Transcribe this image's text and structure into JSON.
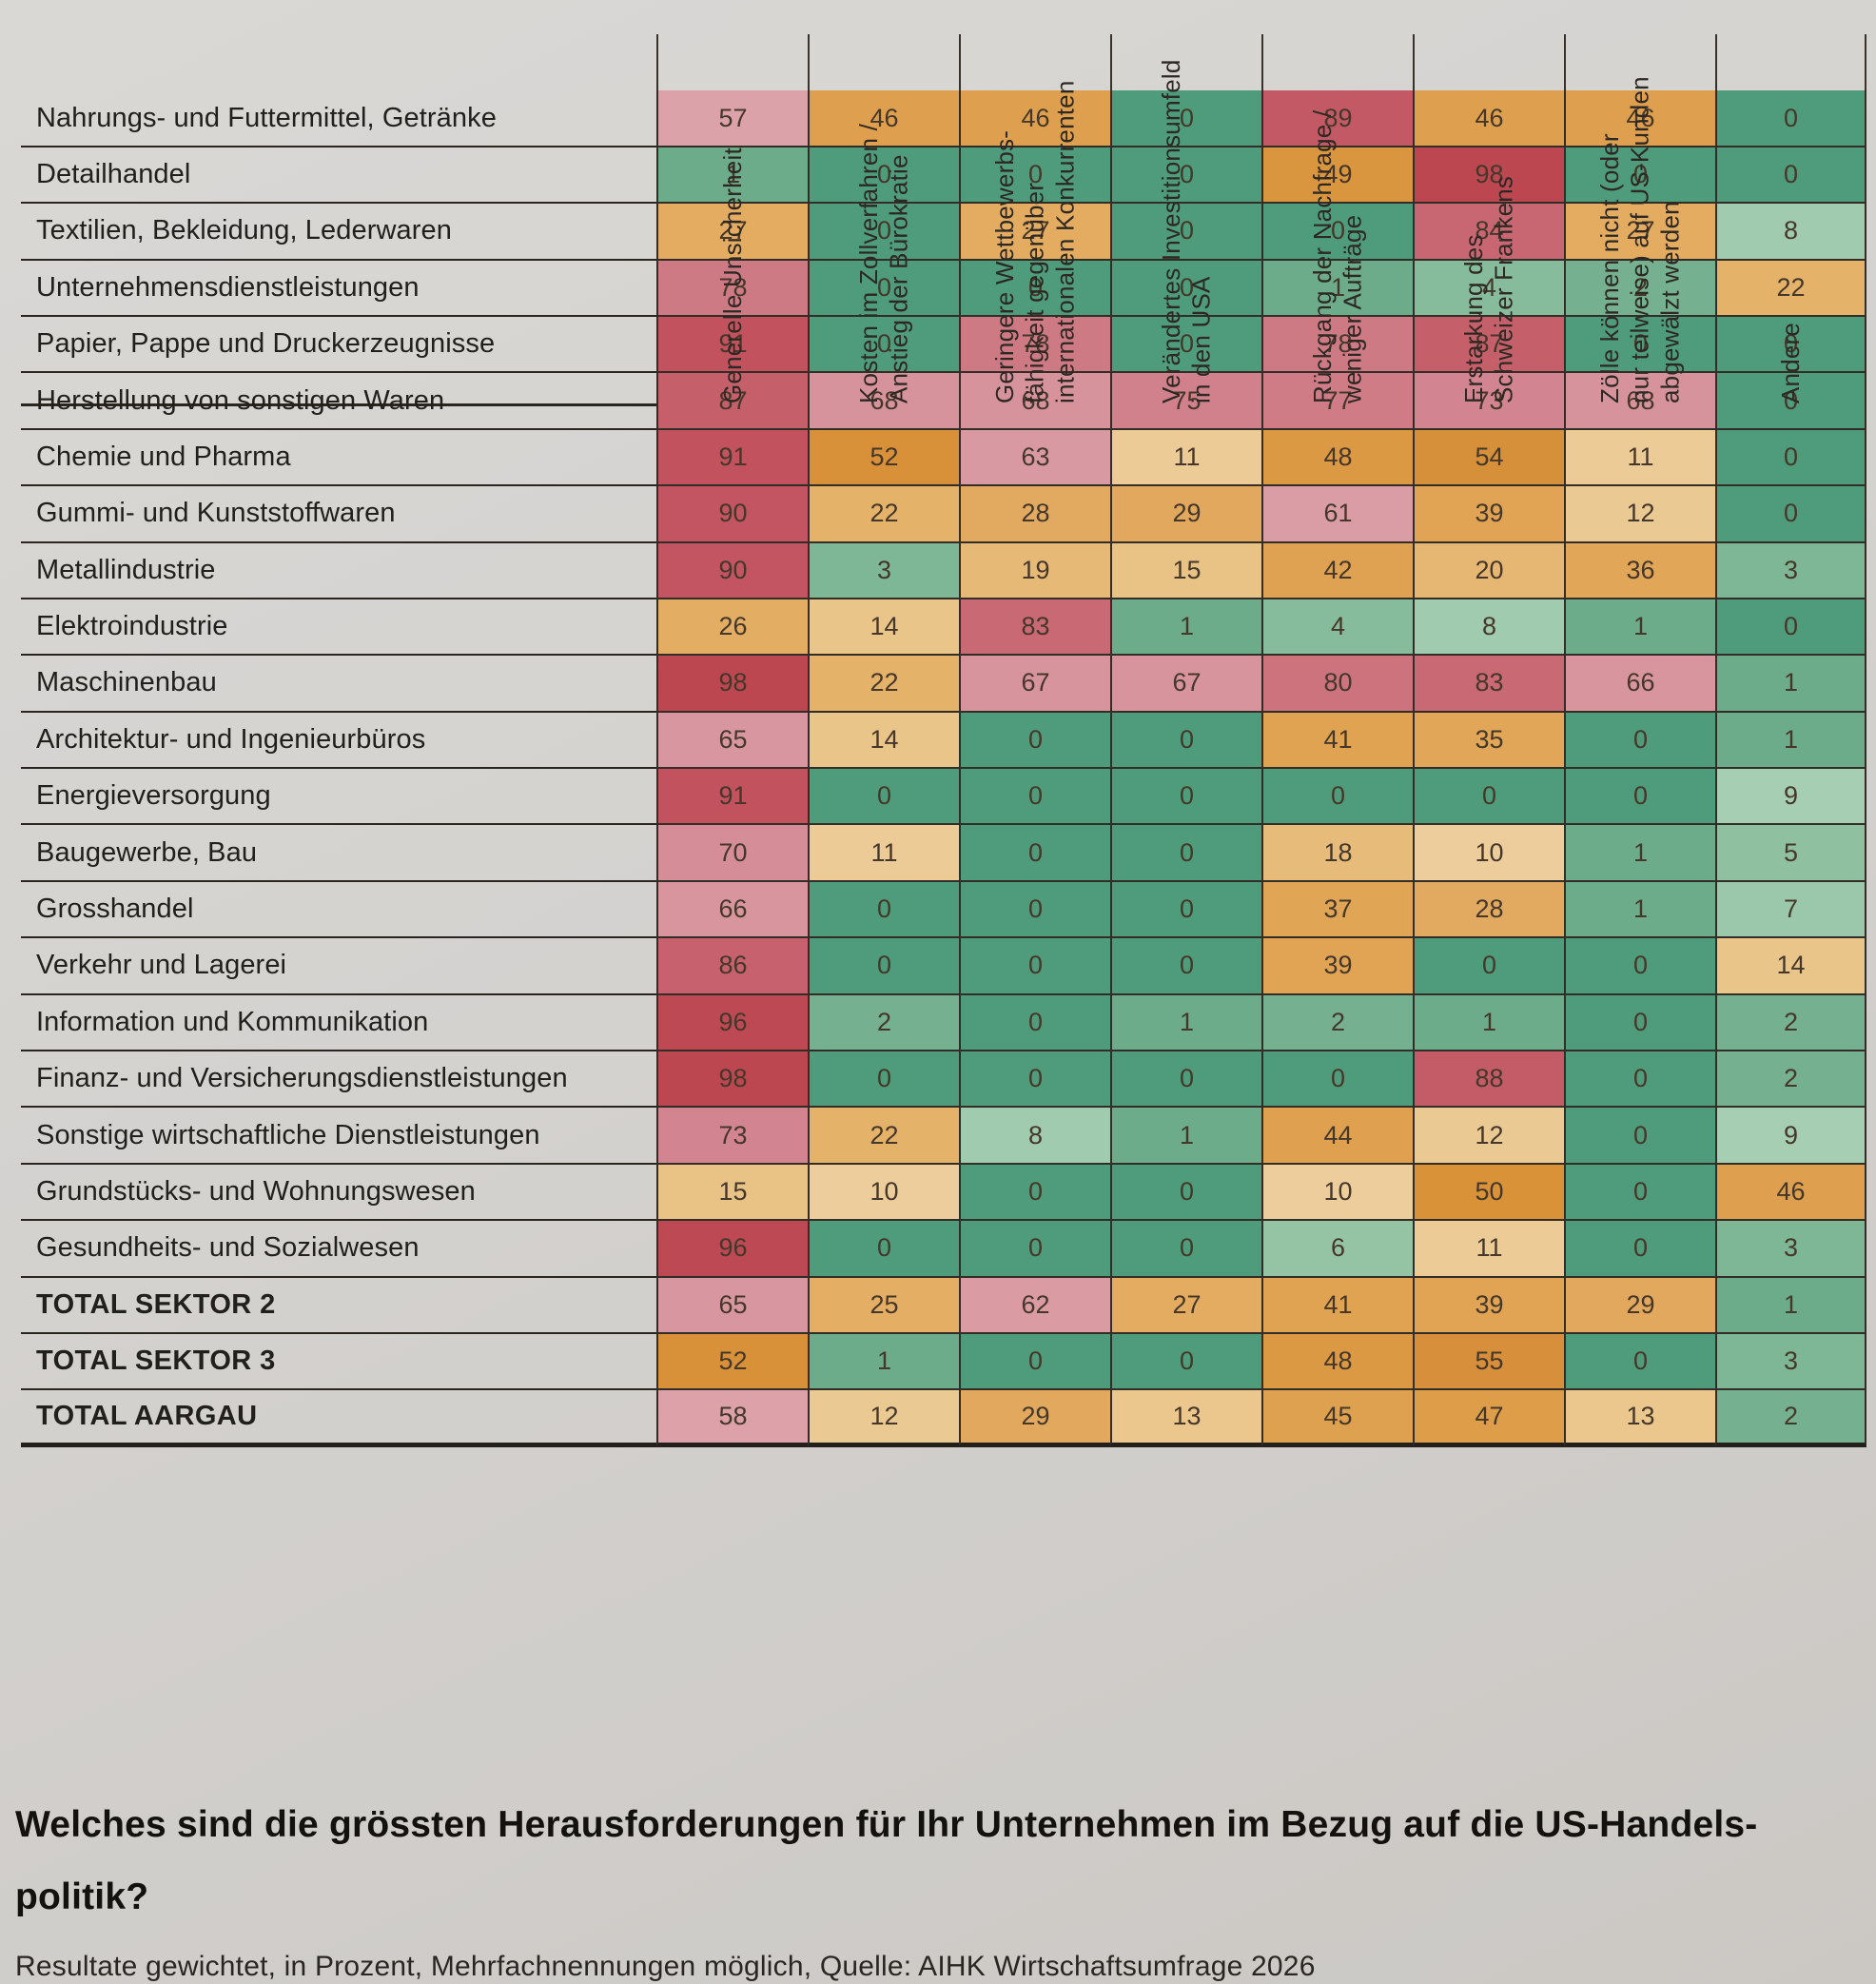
{
  "chart_data": {
    "type": "heatmap",
    "title": "Welches sind die grössten Herausforderungen für Ihr Unternehmen im Bezug auf die US-Handelspolitik?",
    "note": "Resultate gewichtet, in Prozent, Mehrfachnennungen möglich, Quelle: AIHK Wirtschaftsumfrage 2026",
    "unit": "percent",
    "value_range": [
      0,
      100
    ],
    "columns": [
      [
        "Generelle Unsicherheit"
      ],
      [
        "Kosten im Zollverfahren /",
        "Anstieg der Bürokratie"
      ],
      [
        "Geringere Wettbewerbs-",
        "fähigkeit gegenüber",
        "internationalen Konkurrenten"
      ],
      [
        "Verändertes Investitionsumfeld",
        "in den USA"
      ],
      [
        "Rückgang der Nachfrage /",
        "weniger Aufträge"
      ],
      [
        "Erstarkung des",
        "Schweizer Frankens"
      ],
      [
        "Zölle können nicht (oder",
        "nur teilweise) auf US-Kunden",
        "abgewälzt werden"
      ],
      [
        "Andere"
      ]
    ],
    "rows": [
      {
        "label": "Nahrungs- und Futtermittel, Getränke",
        "bold": false,
        "values": [
          57,
          46,
          46,
          0,
          89,
          46,
          46,
          0
        ]
      },
      {
        "label": "Detailhandel",
        "bold": false,
        "values": [
          1,
          0,
          0,
          0,
          49,
          98,
          0,
          0
        ]
      },
      {
        "label": "Textilien, Bekleidung, Lederwaren",
        "bold": false,
        "values": [
          27,
          0,
          27,
          0,
          0,
          84,
          27,
          8
        ]
      },
      {
        "label": "Unternehmensdienstleistungen",
        "bold": false,
        "values": [
          78,
          0,
          0,
          0,
          1,
          4,
          2,
          22
        ]
      },
      {
        "label": "Papier, Pappe und Druckerzeugnisse",
        "bold": false,
        "values": [
          91,
          0,
          78,
          0,
          78,
          87,
          0,
          0
        ]
      },
      {
        "label": "Herstellung von sonstigen Waren",
        "bold": false,
        "values": [
          87,
          68,
          68,
          75,
          77,
          73,
          68,
          0
        ]
      },
      {
        "label": "Chemie und Pharma",
        "bold": false,
        "values": [
          91,
          52,
          63,
          11,
          48,
          54,
          11,
          0
        ]
      },
      {
        "label": "Gummi- und Kunststoffwaren",
        "bold": false,
        "values": [
          90,
          22,
          28,
          29,
          61,
          39,
          12,
          0
        ]
      },
      {
        "label": "Metallindustrie",
        "bold": false,
        "values": [
          90,
          3,
          19,
          15,
          42,
          20,
          36,
          3
        ]
      },
      {
        "label": "Elektroindustrie",
        "bold": false,
        "values": [
          26,
          14,
          83,
          1,
          4,
          8,
          1,
          0
        ]
      },
      {
        "label": "Maschinenbau",
        "bold": false,
        "values": [
          98,
          22,
          67,
          67,
          80,
          83,
          66,
          1
        ]
      },
      {
        "label": "Architektur- und Ingenieurbüros",
        "bold": false,
        "values": [
          65,
          14,
          0,
          0,
          41,
          35,
          0,
          1
        ]
      },
      {
        "label": "Energieversorgung",
        "bold": false,
        "values": [
          91,
          0,
          0,
          0,
          0,
          0,
          0,
          9
        ]
      },
      {
        "label": "Baugewerbe, Bau",
        "bold": false,
        "values": [
          70,
          11,
          0,
          0,
          18,
          10,
          1,
          5
        ]
      },
      {
        "label": "Grosshandel",
        "bold": false,
        "values": [
          66,
          0,
          0,
          0,
          37,
          28,
          1,
          7
        ]
      },
      {
        "label": "Verkehr und Lagerei",
        "bold": false,
        "values": [
          86,
          0,
          0,
          0,
          39,
          0,
          0,
          14
        ]
      },
      {
        "label": "Information und Kommunikation",
        "bold": false,
        "values": [
          96,
          2,
          0,
          1,
          2,
          1,
          0,
          2
        ]
      },
      {
        "label": "Finanz- und Versicherungsdienstleistungen",
        "bold": false,
        "values": [
          98,
          0,
          0,
          0,
          0,
          88,
          0,
          2
        ]
      },
      {
        "label": "Sonstige wirtschaftliche Dienstleistungen",
        "bold": false,
        "values": [
          73,
          22,
          8,
          1,
          44,
          12,
          0,
          9
        ]
      },
      {
        "label": "Grundstücks- und Wohnungswesen",
        "bold": false,
        "values": [
          15,
          10,
          0,
          0,
          10,
          50,
          0,
          46
        ]
      },
      {
        "label": "Gesundheits- und Sozialwesen",
        "bold": false,
        "values": [
          96,
          0,
          0,
          0,
          6,
          11,
          0,
          3
        ]
      },
      {
        "label": "TOTAL SEKTOR 2",
        "bold": true,
        "values": [
          65,
          25,
          62,
          27,
          41,
          39,
          29,
          1
        ]
      },
      {
        "label": "TOTAL SEKTOR 3",
        "bold": true,
        "values": [
          52,
          1,
          0,
          0,
          48,
          55,
          0,
          3
        ]
      },
      {
        "label": "TOTAL AARGAU",
        "bold": true,
        "values": [
          58,
          12,
          29,
          13,
          45,
          47,
          13,
          2
        ]
      }
    ],
    "heatmap_scale": [
      [
        0,
        "#4E9C7B"
      ],
      [
        1,
        "#6CAC8A"
      ],
      [
        5,
        "#8FC1A1"
      ],
      [
        9,
        "#A6CEB2"
      ],
      [
        10,
        "#EDCD9B"
      ],
      [
        15,
        "#E9C386"
      ],
      [
        22,
        "#E5B26A"
      ],
      [
        29,
        "#E2A95E"
      ],
      [
        37,
        "#E1A556"
      ],
      [
        46,
        "#DEA04E"
      ],
      [
        50,
        "#D99238"
      ],
      [
        55,
        "#D78F3B"
      ],
      [
        57,
        "#DCA2AA"
      ],
      [
        63,
        "#D999A2"
      ],
      [
        68,
        "#D7939C"
      ],
      [
        73,
        "#D28591"
      ],
      [
        78,
        "#CE7A85"
      ],
      [
        83,
        "#C96974"
      ],
      [
        88,
        "#C45C68"
      ],
      [
        91,
        "#C1525E"
      ],
      [
        96,
        "#BD4954"
      ],
      [
        100,
        "#BA444E"
      ]
    ]
  },
  "caption": {
    "title_lines": [
      "Welches sind die grössten Herausforderungen für Ihr Unternehmen im Bezug auf die US-Handels-",
      "politik?"
    ],
    "note": "Resultate gewichtet, in Prozent, Mehrfachnennungen möglich, Quelle: AIHK Wirtschaftsumfrage 2026"
  }
}
